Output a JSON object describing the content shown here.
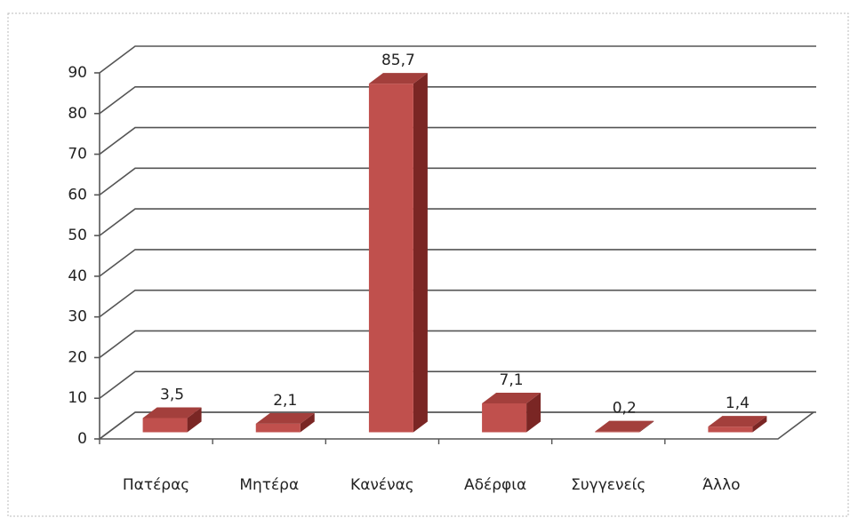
{
  "chart_data": {
    "type": "bar3d",
    "categories": [
      "Πατέρας",
      "Μητέρα",
      "Κανένας",
      "Αδέρφια",
      "Συγγενείς",
      "Άλλο"
    ],
    "values": [
      3.5,
      2.1,
      85.7,
      7.1,
      0.2,
      1.4
    ],
    "value_labels": [
      "3,5",
      "2,1",
      "85,7",
      "7,1",
      "0,2",
      "1,4"
    ],
    "color": "#c0504d",
    "ylim": [
      0,
      90
    ],
    "yticks": [
      0,
      10,
      20,
      30,
      40,
      50,
      60,
      70,
      80,
      90
    ],
    "grid": true
  }
}
